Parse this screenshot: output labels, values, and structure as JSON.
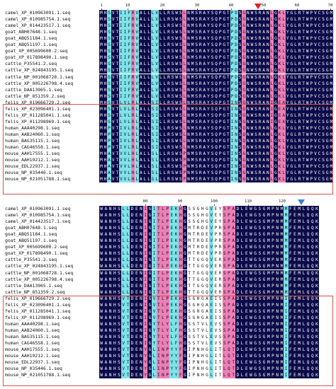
{
  "top_block": {
    "ruler_ticks": [
      "1",
      "10",
      "20",
      "30",
      "40",
      "50",
      "60",
      "70"
    ],
    "names": [
      "camel_XP_010963091.1.seq",
      "camel_XP_010985754.1.seq",
      "camel_XP_014423517.1.seq",
      "goat_ABH07648.1.seq",
      "goat_ABQ51184.1.seq",
      "goat_ABQ51197.1.seq",
      "goat_XP_005699600.2.seq",
      "goat_XP_017898490.1.seq",
      "cattle_P35541.2.seq",
      "cattle_XP_024843195.1.seq",
      "cattle_NP_001068728.1.seq",
      "cattle_XP_005226798.4.seq",
      "cattle_DAA13965.1.seq",
      "cattle_NP_851359.2.seq",
      "felis_XP_019666729.2.seq",
      "felis_XP_023096401.1.seq",
      "felis_XP_011285041.1.seq",
      "felis_XP_011298969.1.seq",
      "human_AAA40298.1.seq",
      "human_AAB24060.1.seq",
      "human_BAG35115.1.seq",
      "human_CAG46558.1.seq",
      "mouse_AAH17555.1.seq",
      "mouse_AAH19212.1.seq",
      "mouse_EDL22937.1.seq",
      "mouse_NP_035446.1.seq",
      "mouse_NP_021051788.1.seq"
    ],
    "sequences": [
      "MHSVTIIFRVALLLVLLRSWSLNMSRAYSQPGTPDSGNWSRANLGKLYGLRTWPVCSGM",
      "MHSVTIIFRVALLLVLLRSWSLNMSRAYSQPGTPDSGNWSRANLGKLYGLRTWPVCSGM",
      "MHSVTIIFRVALLLVLLRSWSLNMSRAYSQPGTPDSGNWSRANLGKLYGLRTWPVCSGM",
      "MHSVTIIFRVALLLVLLRSWSLNMSRAYSQPGTPDSGNWSRANLGKLYGLRTWPVCSGM",
      "MHSVTIIFRVALLLVLLRSWSLNMSRAYSQPGTPDSGNWSRANLGKLYGLRTWPVCSGM",
      "MHSVTIIFRVALLLVLLRSWSLNMSRAYSQPGTPDSGNWSRANLGKLYGLRTWPVCSGM",
      "MHSVTIIFRVALLLVLLRSWSLNMSRAYSQPGTPDSGNWSRANLGKLYGLRTWPVCSGM",
      "MHSVTIIFRVALLLVLLRSWSLNMSRAYSQPGTPDSGNWSRANLGKLYGLRTWPVCSGM",
      "MHSVTIIFRVALLLVLLRSWSLNMSRAYSQPGTPDSGNWSRANLGKLYGLRTWPVCSGM",
      "MHSVTIIFRVALLLVLLRSWSLNMSRAYSQPGTPDSGNWSRANLGKLYGLRTWPVCSGM",
      "MHSVTIIFRVALLLVLLRSWSLNMSRAYSQPGTPDSGNWSRANLGKLYGLRTWPVCSGM",
      "MHSVTIIFRVALLLVLLRSWSLNMSRAYSQPGTPDSGNWSRANLGKLYGLRTWPVCSGM",
      "MHSVTIIFRVALLLVLLRSWSLNMSRAYSQPGTPDSGNWSRANLGKLYGLRTWPVCSGM",
      "MHSVTIIFRVALLLVLLRSWSLNMSRAYSQPGTPDSGNWSRANLGKLYGLRTWPVCSGM",
      "MHSVTLVLRLALLSILLRSWSLNMSRAYSQPGTINSGNWSRANIGEAYGLRTWPVCSGM",
      "MHSVTLVLRLALLSILLRSWSLNMSRAYSQPGTINSGNWSRANIGEAYGLRTWPVCSGM",
      "MHSVTLVLRLALLSILLRSWSLNMSRAYSQPGTINSGNWSRANIGEAYGLRTWPVCSGM",
      "MHSVTLVLRLALLSILLRSWSLNMSRAYSQPGTINSGNWSRANIGEAYGLRTWPVCSGM",
      "MHPVTIVLRLALLSILLRSWSLNMSRAYSQPGTINSQNWSRANLGKLYGLRTWPVCSGM",
      "MHPVTIVLRLALLSILLRSWSLNMSRAYSQPGTINSQNWSRANLGKLYGLRTWPVCSGM",
      "MHPVTIVLRLALLSILLRSWSLNMSRAYSQPGTINSQNWSRANLGKLYGLRTWPVCSGM",
      "MHPVTIVLRLALLSILLRSWSLNMSRAYSQPGTINSQNWSRANLGKLYGLRTWPVCSGM",
      "MHAVTVVLHLALLSLLLRSWSPNMSRAYSQPGTINSGNWSRANLGKLYGLRTWPVCSGM",
      "MHAVTVVLHLALLSLLLRSWSPNMSRAYSQPGTINSGNWSRANLGKLYGLRTWPVCSGM",
      "MHAVTVVLHLALLSLLLRSWSPNMSRAYSQPGTINSGNWSRANLGKLYGLRTWPVCSGM",
      "MHAVTVVLHLALLSLLLRSWSPNMSRAYSQPGTINSGNWSRANLGKLYGLRTWPVCSGM",
      "MHAVTVVLHLALLSLLLRSWSPNMSRAYSQPGTINSGNWSRANLGKLYGLRTWPVCSGM"
    ]
  },
  "bottom_block": {
    "ruler_ticks": [
      "80",
      "90",
      "100",
      "110",
      "120"
    ],
    "names": [
      "camel_XP_010963091.1.seq",
      "camel_XP_010985754.1.seq",
      "camel_XP_014423517.1.seq",
      "goat_ABH07648.1.seq",
      "goat_ABQ51184.1.seq",
      "goat_ABQ51197.1.seq",
      "goat_XP_005699600.2.seq",
      "goat_XP_017898490.1.seq",
      "cattle_P35541.2.seq",
      "cattle_XP_024843195.1.seq",
      "cattle_NP_001068728.1.seq",
      "cattle_XP_005226798.4.seq",
      "cattle_DAA13965.1.seq",
      "cattle_NP_851359.2.seq",
      "felis_XP_019666729.2.seq",
      "felis_XP_023096401.1.seq",
      "felis_XP_011285041.1.seq",
      "felis_XP_011298969.1.seq",
      "human_AAA40298.1.seq",
      "human_AAB24060.1.seq",
      "human_BAG35115.1.seq",
      "human_CAG46558.1.seq",
      "mouse_AAH17555.1.seq",
      "mouse_AAH19212.1.seq",
      "mouse_EDL22937.1.seq",
      "mouse_NP_035446.1.seq",
      "mouse_NP_021051788.1.seq"
    ],
    "sequences": [
      "WANHSLLDENIGITLPEKHGSSGHGVEYSPADLEWGSGMPNMMFEMLQQK",
      "WANHSLLDENIGITLPEKHGSSGHGVEYSPADLEWGSGMPNMMFEMLQQK",
      "WANHSLLDENIGITLPEKHGSSGHGVEYSPADLEWGSGMPNMMFEMLQQK",
      "WANHSLLDENIGITLPEKHGMTRDEVPRSPADLEWGSGMPNMMFEMLQQK",
      "WANHSLLDENIGITLPEKHGMTRDEVPRSPADLEWGSGMPNMMFEMLQQK",
      "WANHSLLDENIGITLPEKHGMTRDEVPRSPADLEWGSGMPNMMFEMLQQK",
      "WANHSLLDENIGITLPEKHGMTRDEVPRSPADLEWGSGMPNMMFEMLQQK",
      "WANHSLLDENIGITLPEKHGMTRDEVPRSPADLEWGSGMPNMMFEMLQQK",
      "WANHSLLDENIGITLPEKHGTTGGQVERSPADLEWGSGMPNMMFEMLQQK",
      "WANHSLLDENIGITLPEKHGTTGGQVERSPADLEWGSGMPNMMFEMLQQK",
      "WANHSLLDENIGITLPEKHGTTGGQVERSPADLEWGSGMPNMMFEMLQQK",
      "WANHSLLDENIGITLPEKHGTTGGQVERSPADLEWGSGMPNMMFEMLQQK",
      "WANHSLLDENIGITLPEKHGTTGGQVERSPADLEWGSGMPNMMFEMLQQK",
      "WANHSLLDENIGITLPEKHGTTGGQVERSPADLEWGSGMPNMMFEMLQQK",
      "WANHSVTDENIGVTLPEKHGSGHGAEISSPADLEWGSGMPNMIFEMLQQK",
      "WANHSVTDENIGVTLPEKHGSGHGAEISSPADLEWGSGMPNMIFEMLQQK",
      "WANHSVTDENIGVTLPEKHGSGHGAEISSPADLEWGSGMPNMIFEMLQQK",
      "WANHSVTDENIGVTLPEKHGSGHGAEISSPADLEWGSGMPNMIFEMLQQK",
      "WANHSVTDENIGYTLYLFHGSSTVLEVSSPADLEWGSGMPNMIFEMLQQK",
      "WANHSVTDENIGYTLYLFHGSSTVLEVSSPADLEWGSGMPNMIFEMLQQK",
      "WANHSVTDENIGYTLYLFHGSSTVLEVSSPADLEWGSGMPNMIFEMLQQK",
      "WANHSVTDENIGYTLYLFHGSSTVLEVSSPADLEWGSGMPNMIFEMLQQK",
      "WANHSVTDENYGLINPYYFGIPNHGLITLQTDLEWGSGMPNMIFEMLQQK",
      "WANHSVTDENYGLINPYYFGIPNHGLITLQTDLEWGSGMPNMIFEMLQQK",
      "WANHSVTDENYGLINPYYFGIPNHGLITLQTDLEWGSGMPNMIFEMLQQK",
      "WANHSVTDENYGLINPYYFGIPNHGLITLQTDLEWGSGMPNMIFEMLQQK",
      "WANHSVTDENYGLINPYYFGIPNHGLITLQTDLEWGSGMPNMIFEMLQQK"
    ]
  },
  "colors": {
    "conserved_bg": "#0b0b4a",
    "conserved_fg": "#ffffff",
    "similar_bg": "#ee7fb8",
    "similar_fg": "#111111",
    "weak_bg": "#7de4ea",
    "weak_fg": "#111111",
    "none_bg": "#ffffff",
    "none_fg": "#111111",
    "highlight_box": "#d9534f",
    "red_arrow": "#e02020",
    "blue_arrow": "#3a7fd0"
  }
}
